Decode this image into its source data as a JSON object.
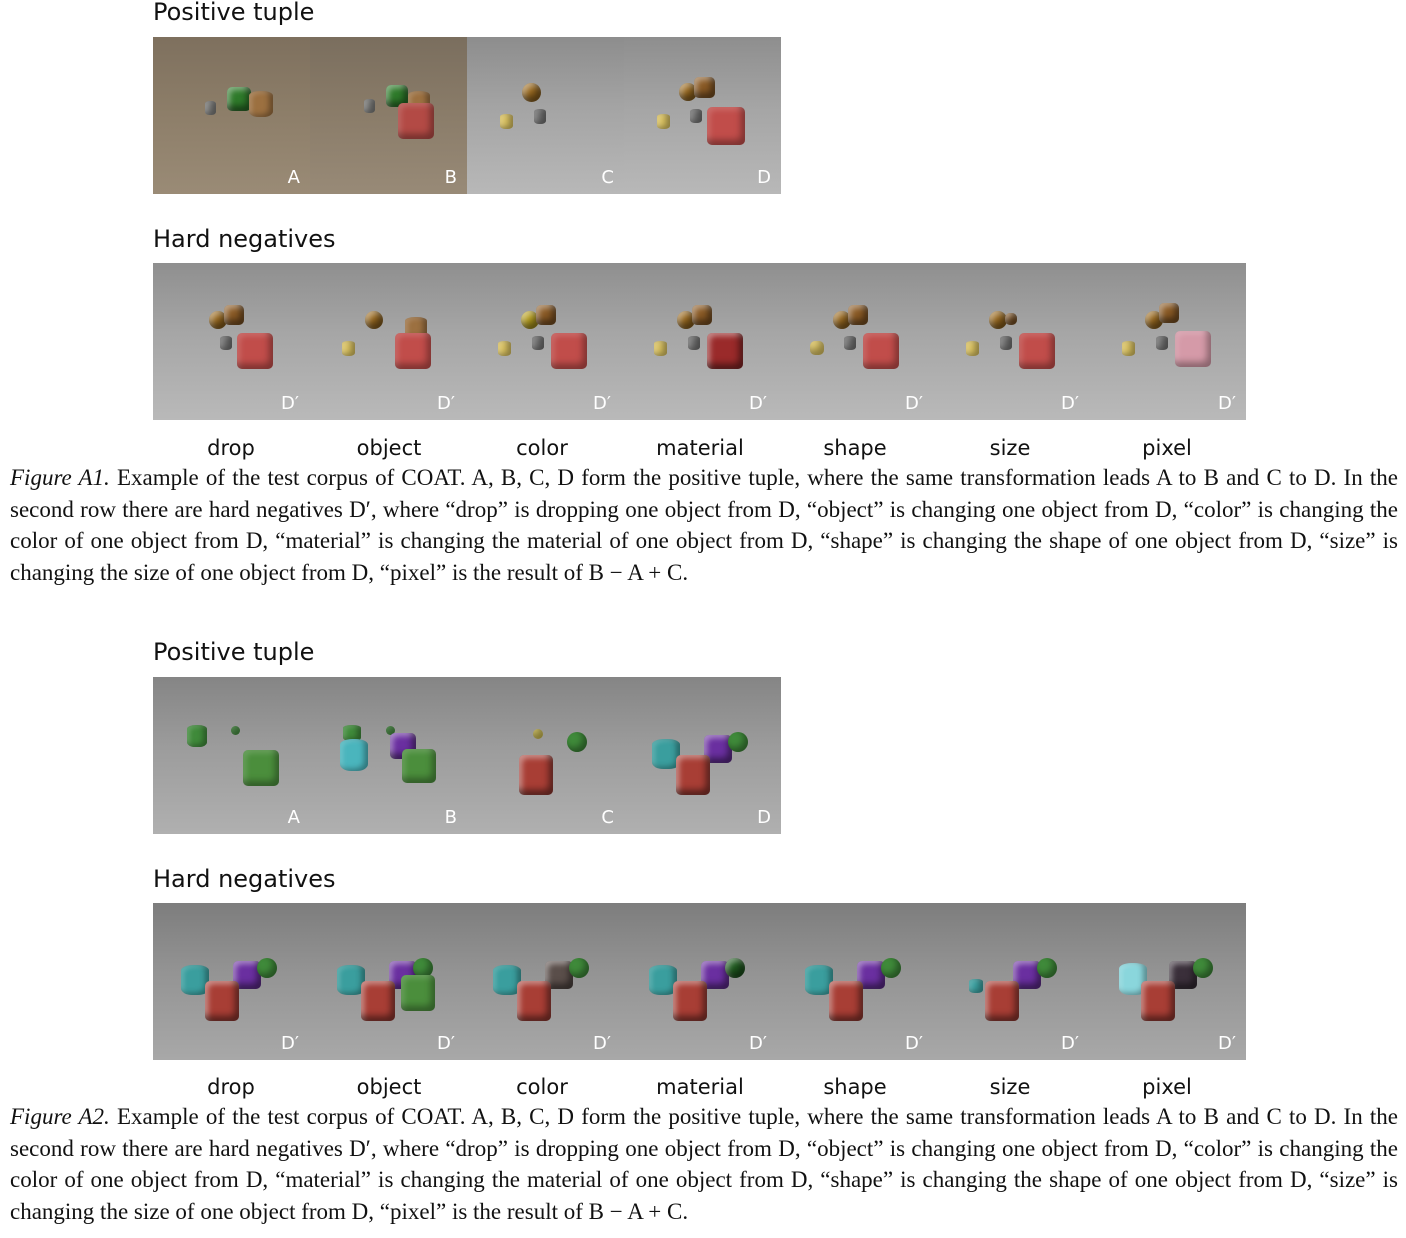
{
  "figures": [
    {
      "positive_title": "Positive tuple",
      "negatives_title": "Hard negatives",
      "positive_tiles": [
        "A",
        "B",
        "C",
        "D"
      ],
      "negative_tiles": [
        "D′",
        "D′",
        "D′",
        "D′",
        "D′",
        "D′",
        "D′"
      ],
      "negative_labels": [
        "drop",
        "object",
        "color",
        "material",
        "shape",
        "size",
        "pixel"
      ],
      "caption": {
        "figure_ref": "Figure A1.",
        "text": "Example of the test corpus of COAT. A, B, C, D form the positive tuple, where the same transformation leads A to B and C to D. In the second row there are hard negatives D′, where “drop” is dropping one object from D, “object” is changing one object from D, “color” is changing the color of one object from D, “material” is changing the material of one object from D, “shape” is changing the shape of one object from D, “size” is changing the size of one object from D, “pixel” is the result of B − A + C."
      }
    },
    {
      "positive_title": "Positive tuple",
      "negatives_title": "Hard negatives",
      "positive_tiles": [
        "A",
        "B",
        "C",
        "D"
      ],
      "negative_tiles": [
        "D′",
        "D′",
        "D′",
        "D′",
        "D′",
        "D′",
        "D′"
      ],
      "negative_labels": [
        "drop",
        "object",
        "color",
        "material",
        "shape",
        "size",
        "pixel"
      ],
      "caption": {
        "figure_ref": "Figure A2.",
        "text": "Example of the test corpus of COAT. A, B, C, D form the positive tuple, where the same transformation leads A to B and C to D. In the second row there are hard negatives D′, where “drop” is dropping one object from D, “object” is changing one object from D, “color” is changing the color of one object from D, “material” is changing the material of one object from D, “shape” is changing the shape of one object from D, “size” is changing the size of one object from D, “pixel” is the result of B − A + C."
      }
    }
  ]
}
